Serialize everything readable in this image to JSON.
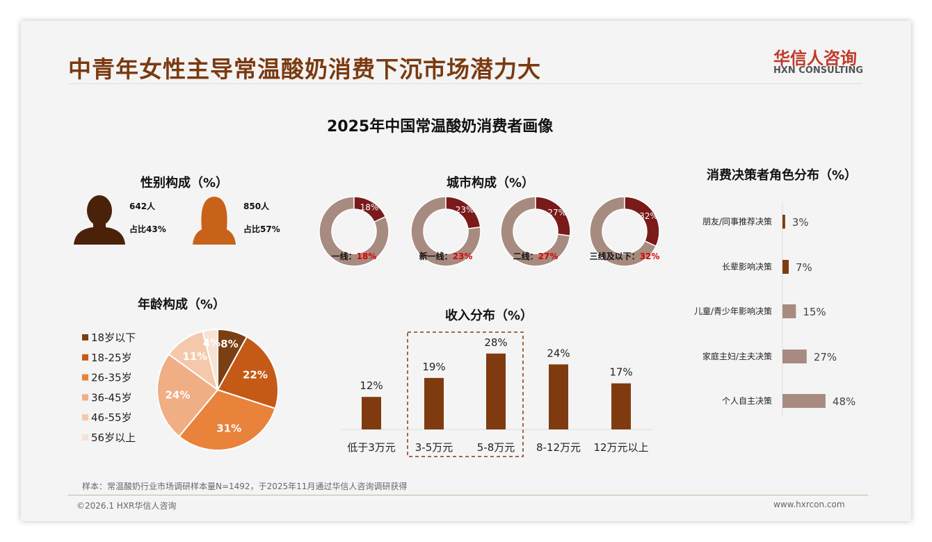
{
  "header": {
    "title": "中青年女性主导常温酸奶消费下沉市场潜力大",
    "logo_cn": "华信人咨询",
    "logo_en": "HXN CONSULTING"
  },
  "main_title": "2025年中国常温酸奶消费者画像",
  "gender": {
    "title": "性别构成（%）",
    "male": {
      "count": "642人",
      "share": "占比43%"
    },
    "female": {
      "count": "850人",
      "share": "占比57%"
    },
    "colors": {
      "male": "#4a220a",
      "female": "#c8621a"
    }
  },
  "chart_data": [
    {
      "type": "pie",
      "title": "城市构成（%）",
      "categories": [
        "一线",
        "新一线",
        "二线",
        "三线及以下"
      ],
      "values": [
        18,
        23,
        27,
        32
      ],
      "labels": [
        "一线：",
        "新一线：",
        "二线：",
        "三线及以下："
      ],
      "value_labels": [
        "18%",
        "23%",
        "27%",
        "32%"
      ],
      "colors": {
        "highlight": "#7a1a1a",
        "rest": "#a88b80"
      }
    },
    {
      "type": "pie",
      "title": "年龄构成（%）",
      "categories": [
        "18岁以下",
        "18-25岁",
        "26-35岁",
        "36-45岁",
        "46-55岁",
        "56岁以上"
      ],
      "values": [
        8,
        22,
        31,
        24,
        11,
        4
      ],
      "value_labels": [
        "8%",
        "22%",
        "31%",
        "24%",
        "11%",
        "4%"
      ],
      "colors": [
        "#7b3f14",
        "#c45a16",
        "#e9823a",
        "#f0ae84",
        "#f4c9ab",
        "#f7e2d4"
      ],
      "legend": "left"
    },
    {
      "type": "bar",
      "title": "收入分布（%）",
      "categories": [
        "低于3万元",
        "3-5万元",
        "5-8万元",
        "8-12万元",
        "12万元以上"
      ],
      "values": [
        12,
        19,
        28,
        24,
        17
      ],
      "value_labels": [
        "12%",
        "19%",
        "28%",
        "24%",
        "17%"
      ],
      "highlight": [
        "3-5万元",
        "5-8万元"
      ],
      "color": "#7f3b0f"
    },
    {
      "type": "bar",
      "orientation": "horizontal",
      "title": "消费决策者角色分布（%）",
      "categories": [
        "朋友/同事推荐决策",
        "长辈影响决策",
        "儿童/青少年影响决策",
        "家庭主妇/主夫决策",
        "个人自主决策"
      ],
      "values": [
        3,
        7,
        15,
        27,
        48
      ],
      "value_labels": [
        "3%",
        "7%",
        "15%",
        "27%",
        "48%"
      ],
      "colors": [
        "#7f3b0f",
        "#7f3b0f",
        "#a88b80",
        "#a88b80",
        "#a88b80"
      ]
    }
  ],
  "footer": {
    "note": "样本：常温酸奶行业市场调研样本量N=1492，于2025年11月通过华信人咨询调研获得",
    "copyright": "©2026.1 HXR华信人咨询",
    "url": "www.hxrcon.com"
  }
}
